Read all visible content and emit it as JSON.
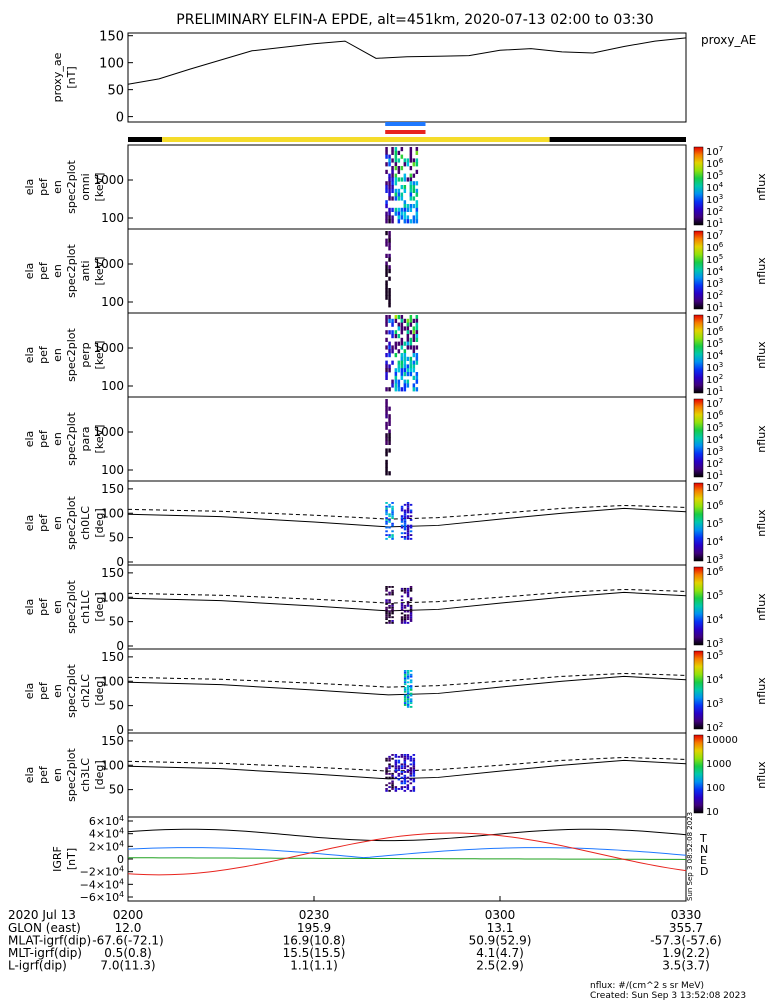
{
  "title": "PRELIMINARY ELFIN-A EPDE, alt=451km, 2020-07-13 02:00 to 03:30",
  "colors": {
    "black": "#000000",
    "yellow": "#f5dc2a",
    "blue": "#1e78ff",
    "red": "#e8241e",
    "green": "#1ea01e"
  },
  "chart_data": [
    {
      "type": "line",
      "name": "proxy_ae",
      "legend": "proxy_AE",
      "ylabel": [
        "proxy_ae",
        "[nT]"
      ],
      "yticks": [
        "150",
        "100",
        "50",
        "0"
      ],
      "ylim": [
        -10,
        155
      ],
      "x_minutes": [
        0,
        5,
        10,
        20,
        30,
        35,
        40,
        45,
        50,
        55,
        60,
        65,
        70,
        75,
        80,
        85,
        90
      ],
      "y": [
        60,
        70,
        88,
        122,
        135,
        140,
        108,
        111,
        112,
        113,
        123,
        126,
        120,
        118,
        130,
        140,
        146
      ]
    },
    {
      "type": "status_bars",
      "orbit_bar": [
        {
          "from": 0,
          "to": 5.5,
          "color": "black"
        },
        {
          "from": 5.5,
          "to": 68,
          "color": "yellow"
        },
        {
          "from": 68,
          "to": 90,
          "color": "black"
        }
      ],
      "science_bars": [
        {
          "from": 41,
          "to": 47.5,
          "color": "blue"
        },
        {
          "from": 41,
          "to": 47.5,
          "color": "red"
        }
      ]
    },
    {
      "type": "heatmap",
      "name": "omni",
      "ylabel": [
        "ela",
        "pef",
        "en",
        "spec2plot",
        "omni",
        "[keV]"
      ],
      "yticks": [
        "1000",
        "100"
      ],
      "colorbar_ticks": [
        "10^7",
        "10^6",
        "10^5",
        "10^4",
        "10^3",
        "10^2",
        "10^1"
      ],
      "colorbar_label": "nflux",
      "bursts": [
        {
          "from": 41.5,
          "to": 43,
          "level": 0.35
        },
        {
          "from": 43,
          "to": 47,
          "level": 0.6
        }
      ]
    },
    {
      "type": "heatmap",
      "name": "anti",
      "ylabel": [
        "ela",
        "pef",
        "en",
        "spec2plot",
        "anti",
        "[keV]"
      ],
      "yticks": [
        "1000",
        "100"
      ],
      "colorbar_ticks": [
        "10^7",
        "10^6",
        "10^5",
        "10^4",
        "10^3",
        "10^2",
        "10^1"
      ],
      "colorbar_label": "nflux",
      "bursts": [
        {
          "from": 41.5,
          "to": 42.5,
          "level": 0.1
        }
      ]
    },
    {
      "type": "heatmap",
      "name": "perp",
      "ylabel": [
        "ela",
        "pef",
        "en",
        "spec2plot",
        "perp",
        "[keV]"
      ],
      "yticks": [
        "1000",
        "100"
      ],
      "colorbar_ticks": [
        "10^7",
        "10^6",
        "10^5",
        "10^4",
        "10^3",
        "10^2",
        "10^1"
      ],
      "colorbar_label": "nflux",
      "bursts": [
        {
          "from": 41.5,
          "to": 43,
          "level": 0.35
        },
        {
          "from": 43,
          "to": 47,
          "level": 0.6
        }
      ]
    },
    {
      "type": "heatmap",
      "name": "para",
      "ylabel": [
        "ela",
        "pef",
        "en",
        "spec2plot",
        "para",
        "[keV]"
      ],
      "yticks": [
        "1000",
        "100"
      ],
      "colorbar_ticks": [
        "10^7",
        "10^6",
        "10^5",
        "10^4",
        "10^3",
        "10^2",
        "10^1"
      ],
      "colorbar_label": "nflux",
      "bursts": [
        {
          "from": 41.5,
          "to": 42.5,
          "level": 0.1
        }
      ]
    },
    {
      "type": "heatmap",
      "name": "ch0LC",
      "ylabel": [
        "ela",
        "pef",
        "en",
        "spec2plot",
        "ch0LC",
        "[deg]"
      ],
      "yticks": [
        "150",
        "100",
        "50",
        "0"
      ],
      "colorbar_ticks": [
        "10^7",
        "10^6",
        "10^5",
        "10^4",
        "10^3"
      ],
      "colorbar_label": "nflux",
      "bursts": [
        {
          "from": 41.5,
          "to": 43,
          "level": 0.4
        },
        {
          "from": 44,
          "to": 46,
          "level": 0.25
        }
      ]
    },
    {
      "type": "heatmap",
      "name": "ch1LC",
      "ylabel": [
        "ela",
        "pef",
        "en",
        "spec2plot",
        "ch1LC",
        "[deg]"
      ],
      "yticks": [
        "150",
        "100",
        "50",
        "0"
      ],
      "colorbar_ticks": [
        "10^6",
        "10^5",
        "10^4",
        "10^3"
      ],
      "colorbar_label": "nflux",
      "bursts": [
        {
          "from": 41.5,
          "to": 43,
          "level": 0.05
        },
        {
          "from": 44,
          "to": 46,
          "level": 0.1
        }
      ]
    },
    {
      "type": "heatmap",
      "name": "ch2LC",
      "ylabel": [
        "ela",
        "pef",
        "en",
        "spec2plot",
        "ch2LC",
        "[deg]"
      ],
      "yticks": [
        "150",
        "100",
        "50",
        "0"
      ],
      "colorbar_ticks": [
        "10^5",
        "10^4",
        "10^3",
        "10^2"
      ],
      "colorbar_label": "nflux",
      "bursts": [
        {
          "from": 44.5,
          "to": 46,
          "level": 0.45
        }
      ]
    },
    {
      "type": "heatmap",
      "name": "ch3LC",
      "ylabel": [
        "ela",
        "pef",
        "en",
        "spec2plot",
        "ch3LC",
        "[deg]"
      ],
      "yticks": [
        "150",
        "100",
        "50"
      ],
      "colorbar_ticks": [
        "10000",
        "1000",
        "100",
        "10"
      ],
      "colorbar_label": "nflux",
      "bursts": [
        {
          "from": 41.5,
          "to": 43,
          "level": 0.1
        },
        {
          "from": 43,
          "to": 46.5,
          "level": 0.2
        }
      ]
    },
    {
      "type": "line",
      "name": "IGRF",
      "ylabel": [
        "IGRF",
        "[nT]"
      ],
      "yticks": [
        "6×10^4",
        "4×10^4",
        "2×10^4",
        "0",
        "−2×10^4",
        "−4×10^4",
        "−6×10^4"
      ],
      "ylim": [
        -60000,
        60000
      ],
      "legend": [
        "T",
        "N",
        "E",
        "D"
      ],
      "side_text": "Sun Sep 3 08:52:08 2023"
    }
  ],
  "xaxis": {
    "ticks": [
      "0200",
      "0230",
      "0300",
      "0330"
    ],
    "date_label": "2020 Jul 13",
    "rows": [
      {
        "label": "GLON (east)",
        "values": [
          "12.0",
          "195.9",
          "13.1",
          "355.7"
        ]
      },
      {
        "label": "MLAT-igrf(dip)",
        "values": [
          "-67.6(-72.1)",
          "16.9(10.8)",
          "50.9(52.9)",
          "-57.3(-57.6)"
        ]
      },
      {
        "label": "MLT-igrf(dip)",
        "values": [
          "0.5(0.8)",
          "15.5(15.5)",
          "4.1(4.7)",
          "1.9(2.2)"
        ]
      },
      {
        "label": "L-igrf(dip)",
        "values": [
          "7.0(11.3)",
          "1.1(1.1)",
          "2.5(2.9)",
          "3.5(3.7)"
        ]
      }
    ]
  },
  "footer": {
    "units": "nflux: #/(cm^2 s sr MeV)",
    "created": "Created: Sun Sep  3 13:52:08 2023"
  }
}
